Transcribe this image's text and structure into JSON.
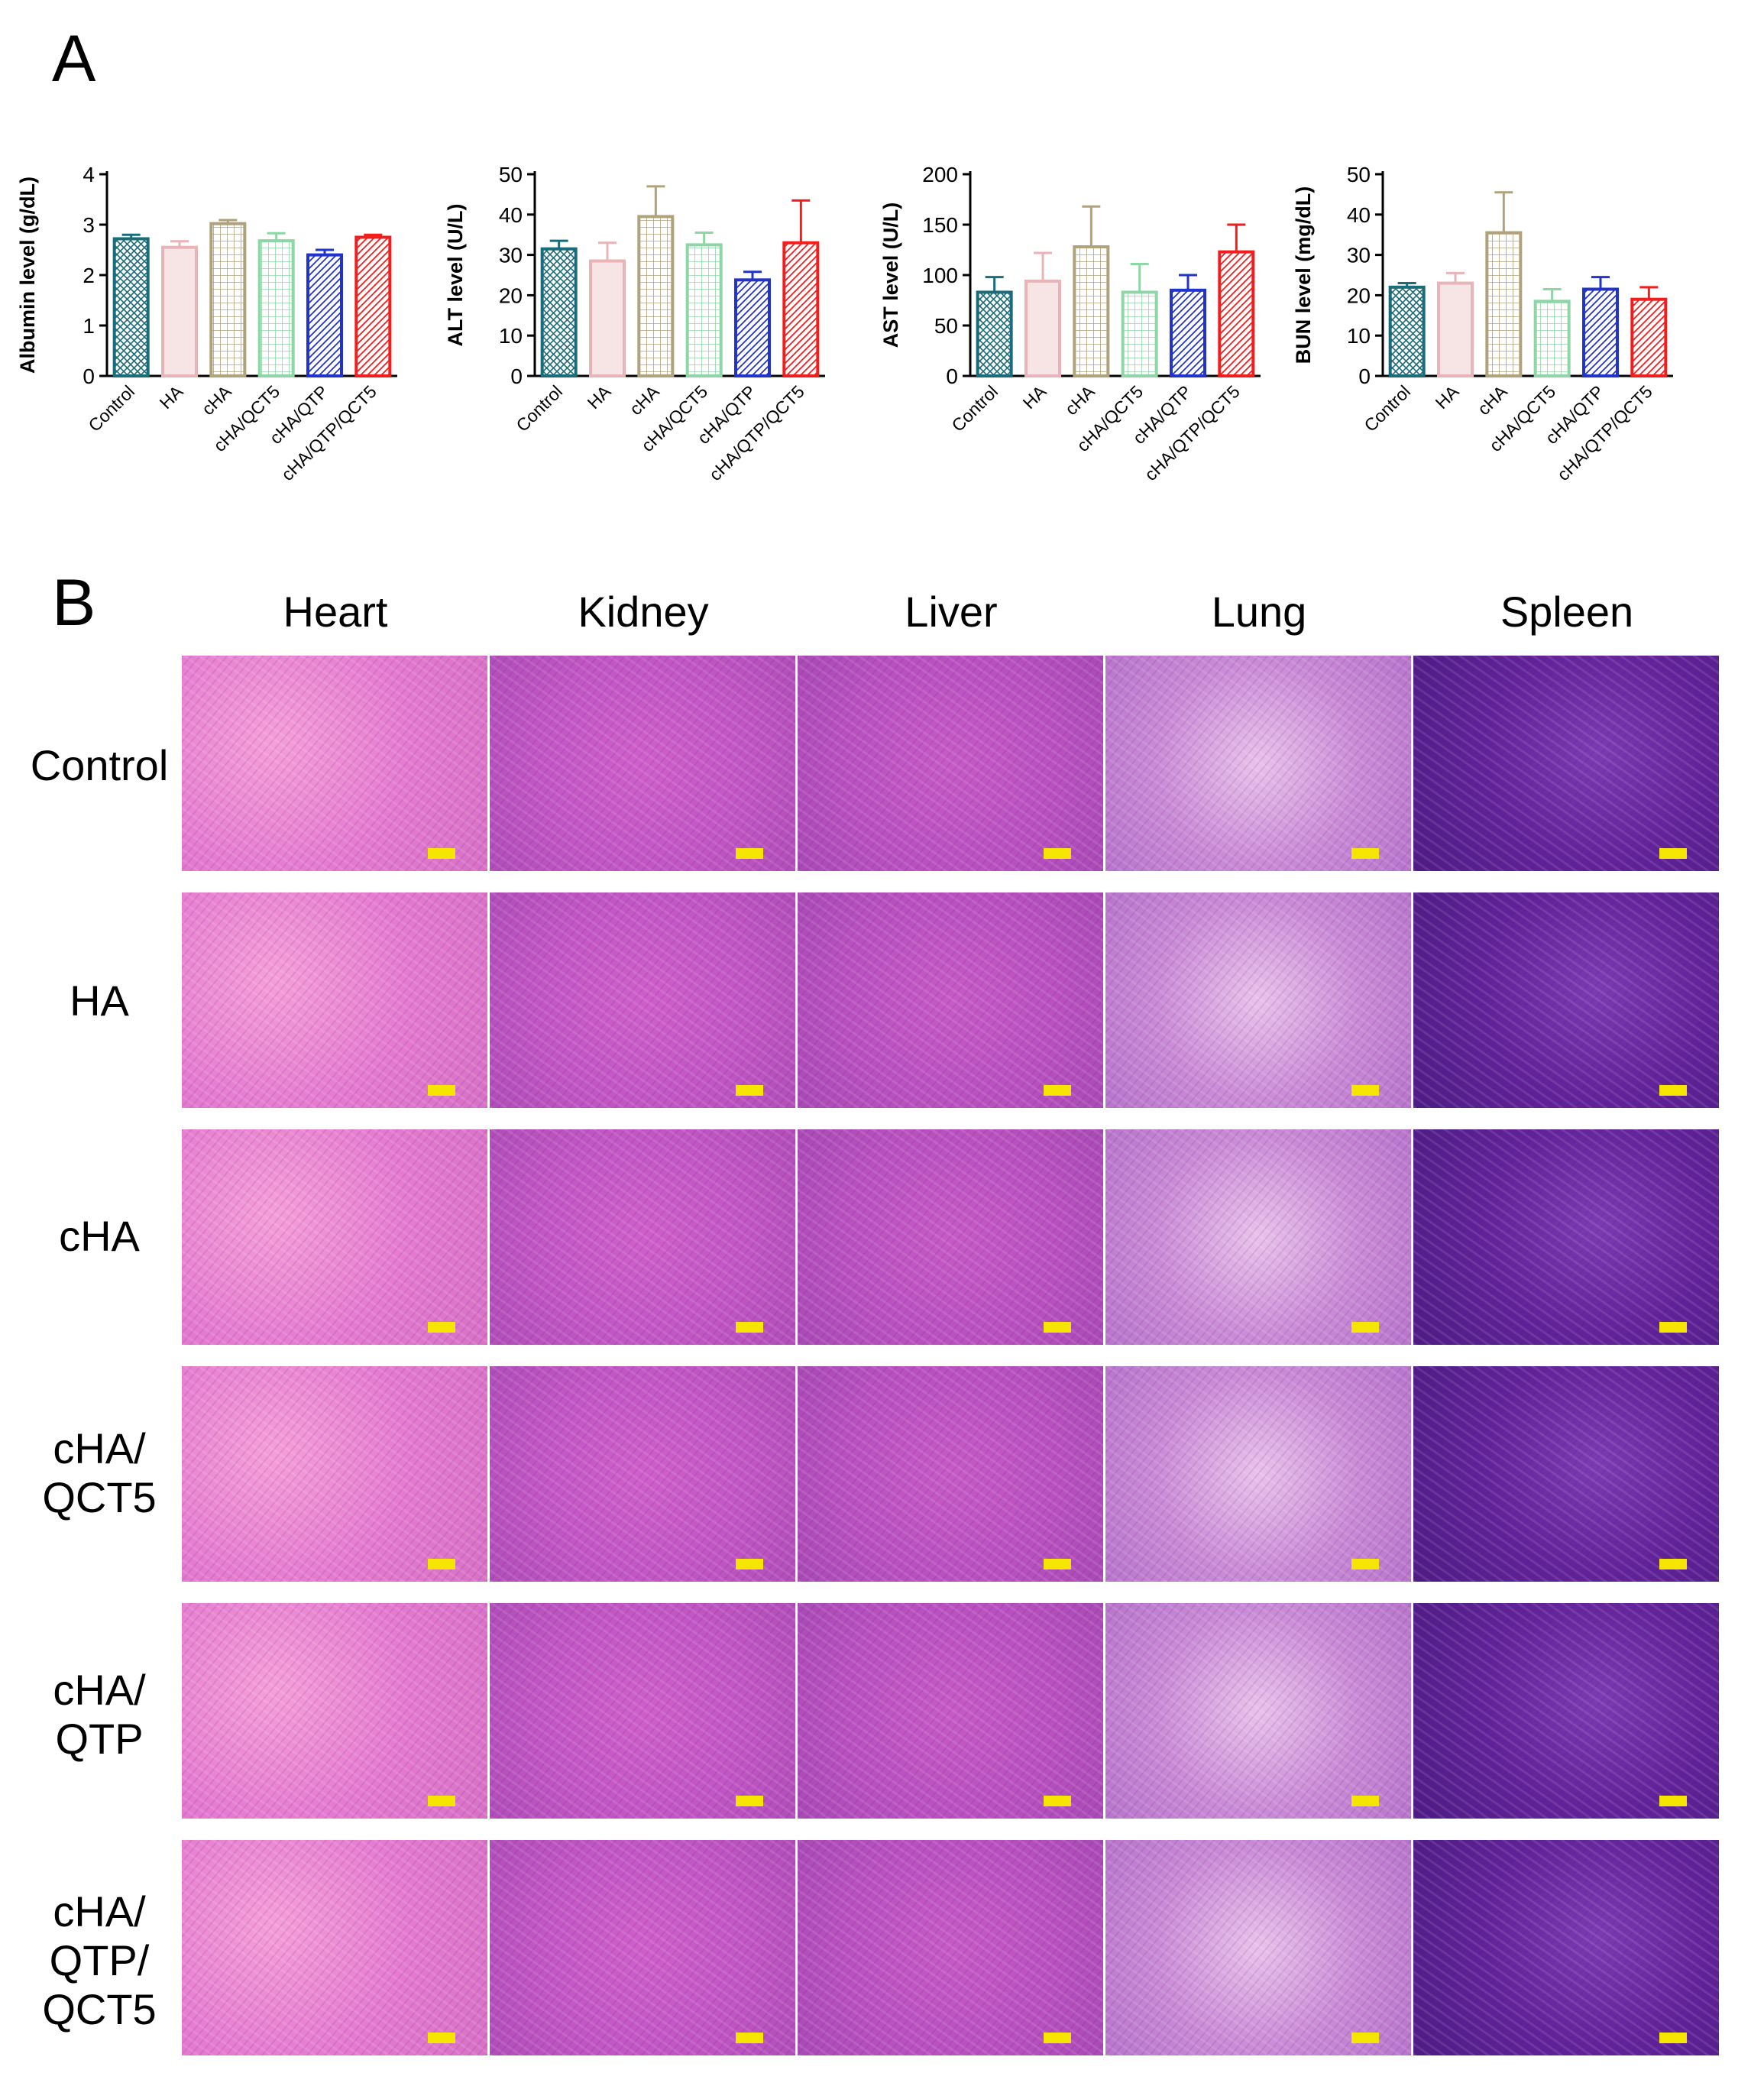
{
  "panels": {
    "a": "A",
    "b": "B"
  },
  "chart_data": [
    {
      "type": "bar",
      "ylabel": "Albumin level (g/dL)",
      "ylim": [
        0,
        4
      ],
      "yticks": [
        "0",
        "1",
        "2",
        "3",
        "4"
      ],
      "categories": [
        "Control",
        "HA",
        "cHA",
        "cHA/QCT5",
        "cHA/QTP",
        "cHA/QTP/QCT5"
      ],
      "values": [
        2.72,
        2.55,
        3.02,
        2.68,
        2.4,
        2.75
      ],
      "errors": [
        0.08,
        0.12,
        0.07,
        0.15,
        0.1,
        0.05
      ]
    },
    {
      "type": "bar",
      "ylabel": "ALT level (U/L)",
      "ylim": [
        0,
        50
      ],
      "yticks": [
        "0",
        "10",
        "20",
        "30",
        "40",
        "50"
      ],
      "categories": [
        "Control",
        "HA",
        "cHA",
        "cHA/QCT5",
        "cHA/QTP",
        "cHA/QTP/QCT5"
      ],
      "values": [
        31.5,
        28.5,
        39.5,
        32.5,
        23.8,
        33.0
      ],
      "errors": [
        2.0,
        4.5,
        7.5,
        3.0,
        2.0,
        10.5
      ]
    },
    {
      "type": "bar",
      "ylabel": "AST level (U/L)",
      "ylim": [
        0,
        200
      ],
      "yticks": [
        "0",
        "50",
        "100",
        "150",
        "200"
      ],
      "categories": [
        "Control",
        "HA",
        "cHA",
        "cHA/QCT5",
        "cHA/QTP",
        "cHA/QTP/QCT5"
      ],
      "values": [
        83,
        94,
        128,
        83,
        85,
        123
      ],
      "errors": [
        15,
        28,
        40,
        28,
        15,
        27
      ]
    },
    {
      "type": "bar",
      "ylabel": "BUN level (mg/dL)",
      "ylim": [
        0,
        50
      ],
      "yticks": [
        "0",
        "10",
        "20",
        "30",
        "40",
        "50"
      ],
      "categories": [
        "Control",
        "HA",
        "cHA",
        "cHA/QCT5",
        "cHA/QTP",
        "cHA/QTP/QCT5"
      ],
      "values": [
        22.0,
        23.0,
        35.5,
        18.5,
        21.5,
        19.0
      ],
      "errors": [
        1.0,
        2.5,
        10.0,
        3.0,
        3.0,
        3.0
      ]
    }
  ],
  "series_colors": [
    "#1a6c7a",
    "#e8b4b8",
    "#b0a27a",
    "#8fd6a6",
    "#2233cc",
    "#f21d1d"
  ],
  "histology": {
    "organs": [
      "Heart",
      "Kidney",
      "Liver",
      "Lung",
      "Spleen"
    ],
    "groups": [
      "Control",
      "HA",
      "cHA",
      "cHA/\nQCT5",
      "cHA/\nQTP",
      "cHA/\nQTP/\nQCT5"
    ]
  }
}
